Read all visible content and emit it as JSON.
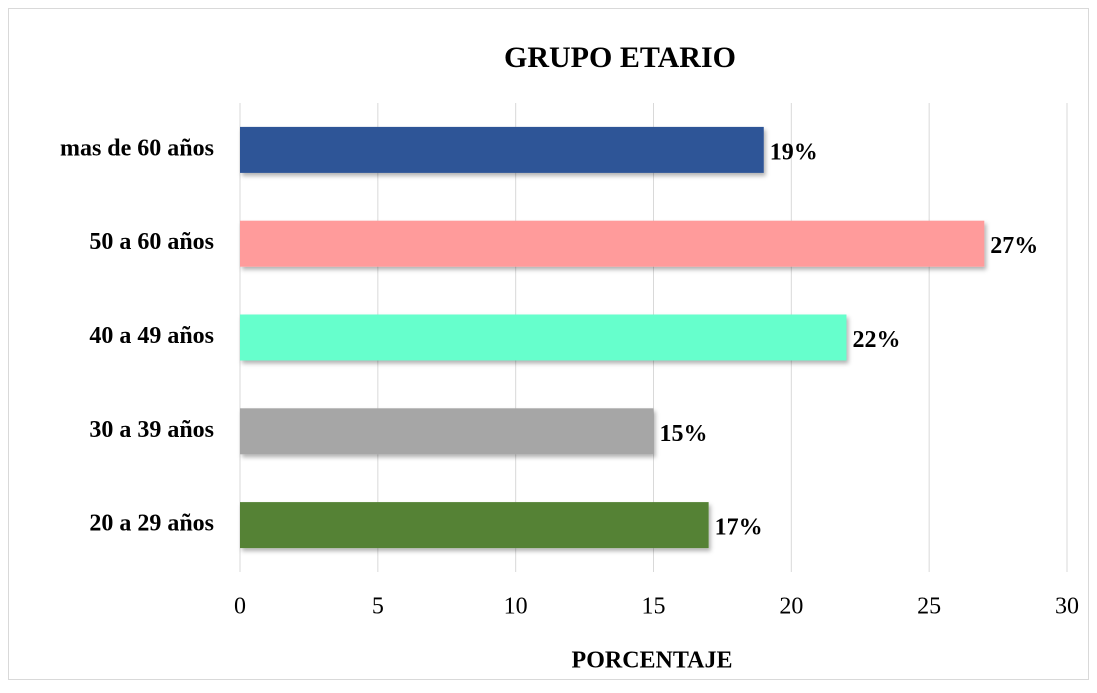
{
  "chart_data": {
    "type": "bar",
    "orientation": "horizontal",
    "title": "GRUPO ETARIO",
    "x_label": "PORCENTAJE",
    "categories": [
      "mas de 60 años",
      "50 a 60 años",
      "40 a 49 años",
      "30 a 39 años",
      "20 a 29 años"
    ],
    "values": [
      19,
      27,
      22,
      15,
      17
    ],
    "value_labels": [
      "19%",
      "27%",
      "22%",
      "15%",
      "17%"
    ],
    "colors": [
      "#2f5597",
      "#ff9b9b",
      "#66ffcc",
      "#a6a6a6",
      "#548235"
    ],
    "xlim": [
      0,
      30
    ],
    "xticks": [
      0,
      5,
      10,
      15,
      20,
      25,
      30
    ],
    "grid": true
  }
}
